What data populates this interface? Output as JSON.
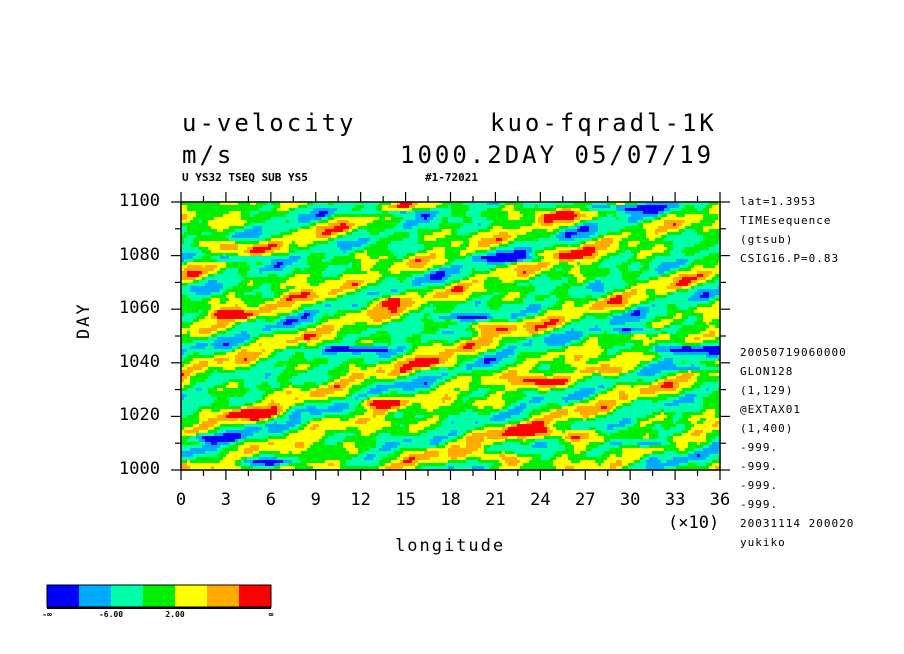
{
  "header": {
    "title_left": "u-velocity",
    "title_right": "kuo-fqradl-1K",
    "units": "m/s",
    "time_info": "1000.2DAY 05/07/19",
    "sub_left": "U YS32 TSEQ SUB YS5",
    "sub_right": "#1-72021"
  },
  "info_panel": {
    "lines_top": [
      "lat=1.3953",
      "TIMEsequence",
      "(gtsub)",
      "CSIG16.P=0.83"
    ],
    "lines_bottom": [
      "20050719060000",
      "GLON128",
      "(1,129)",
      "@EXTAX01",
      "(1,400)",
      "-999.",
      "-999.",
      "-999.",
      "-999.",
      "20031114 200020",
      "yukiko"
    ]
  },
  "colorbar": {
    "colors": [
      "#0000ff",
      "#00aaff",
      "#00ffaa",
      "#00ee00",
      "#ffff00",
      "#ffaa00",
      "#ff0000"
    ],
    "labels": [
      "-∞",
      "-6.00",
      "2.00",
      "∞"
    ]
  },
  "chart_data": {
    "type": "heatmap",
    "xlabel": "longitude",
    "ylabel": "DAY",
    "x_multiplier": "(×10)",
    "xlim": [
      0,
      36
    ],
    "ylim": [
      1000,
      1100
    ],
    "x_ticks": [
      0,
      3,
      6,
      9,
      12,
      15,
      18,
      21,
      24,
      27,
      30,
      33,
      36
    ],
    "y_ticks": [
      1000,
      1020,
      1040,
      1060,
      1080,
      1100
    ],
    "x_tick_labels": [
      "0",
      "3",
      "6",
      "9",
      "12",
      "15",
      "18",
      "21",
      "24",
      "27",
      "30",
      "33",
      "36"
    ],
    "y_tick_labels": [
      "1000",
      "1020",
      "1040",
      "1060",
      "1080",
      "1100"
    ],
    "pattern": "eastward-propagating tilted bands",
    "hot_spots": [
      {
        "lon": 9.5,
        "day": 1002,
        "level": "red"
      },
      {
        "lon": 26,
        "day": 1080,
        "level": "red"
      },
      {
        "lon": 3.5,
        "day": 1058,
        "level": "red"
      },
      {
        "lon": 17,
        "day": 1040,
        "level": "red"
      },
      {
        "lon": 5,
        "day": 1021,
        "level": "red"
      },
      {
        "lon": 13,
        "day": 1025,
        "level": "red"
      },
      {
        "lon": 23,
        "day": 1015,
        "level": "red"
      },
      {
        "lon": 26,
        "day": 1013,
        "level": "red"
      },
      {
        "lon": 3,
        "day": 1084,
        "level": "red"
      },
      {
        "lon": 24,
        "day": 1033,
        "level": "red"
      },
      {
        "lon": 21,
        "day": 1005,
        "level": "red"
      },
      {
        "lon": 13.5,
        "day": 1063,
        "level": "red"
      },
      {
        "lon": 28.5,
        "day": 1037,
        "level": "red"
      },
      {
        "lon": 20.5,
        "day": 1053,
        "level": "orange"
      },
      {
        "lon": 25,
        "day": 1095,
        "level": "orange"
      },
      {
        "lon": 8.5,
        "day": 1065,
        "level": "orange"
      }
    ],
    "cold_spots": [
      {
        "lon": 29,
        "day": 1098,
        "level": "blue"
      },
      {
        "lon": 14.5,
        "day": 1096,
        "level": "blue"
      },
      {
        "lon": 19,
        "day": 1057,
        "level": "blue"
      },
      {
        "lon": 31,
        "day": 1010,
        "level": "blue"
      },
      {
        "lon": 6,
        "day": 1003,
        "level": "blue"
      },
      {
        "lon": 30.5,
        "day": 1052,
        "level": "blue"
      },
      {
        "lon": 2,
        "day": 1012,
        "level": "blue"
      },
      {
        "lon": 12,
        "day": 1045,
        "level": "blue"
      },
      {
        "lon": 33.5,
        "day": 1045,
        "level": "blue"
      },
      {
        "lon": 22,
        "day": 1079,
        "level": "blue"
      },
      {
        "lon": 4,
        "day": 1079,
        "level": "blue"
      },
      {
        "lon": 35,
        "day": 1038,
        "level": "blue"
      }
    ]
  }
}
